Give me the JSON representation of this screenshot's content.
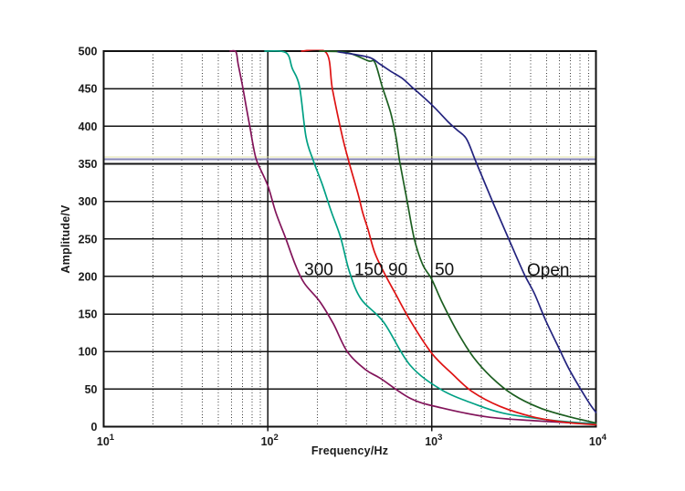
{
  "chart_data": {
    "type": "line",
    "title": "",
    "xlabel": "Frequency/Hz",
    "ylabel": "Amplitude/V",
    "x_scale": "log",
    "xlim": [
      10,
      10000
    ],
    "ylim": [
      0,
      500
    ],
    "y_ticks": [
      0,
      50,
      100,
      150,
      200,
      250,
      300,
      350,
      400,
      450,
      500
    ],
    "x_ticks": [
      {
        "base": "10",
        "exp": "1"
      },
      {
        "base": "10",
        "exp": "2"
      },
      {
        "base": "10",
        "exp": "3"
      },
      {
        "base": "10",
        "exp": "4"
      }
    ],
    "grid": {
      "horizontal": "solid",
      "vertical_major": "solid",
      "vertical_minor": "dotted",
      "color": "#141414",
      "minor_color": "#3c3c3c"
    },
    "reference_lines": [
      {
        "amplitude": 359,
        "color": "#E4E4A8",
        "width": 1.4
      },
      {
        "amplitude": 356,
        "color": "#8585B5",
        "width": 2.2
      }
    ],
    "series": [
      {
        "name": "300",
        "color": "#82145A",
        "points": [
          [
            59,
            500
          ],
          [
            64,
            499
          ],
          [
            66,
            483
          ],
          [
            70,
            455
          ],
          [
            74,
            425
          ],
          [
            78,
            398
          ],
          [
            82,
            371
          ],
          [
            86,
            353
          ],
          [
            100,
            321
          ],
          [
            112,
            285
          ],
          [
            128,
            252
          ],
          [
            147,
            216
          ],
          [
            167,
            191
          ],
          [
            207,
            167
          ],
          [
            251,
            137
          ],
          [
            305,
            100
          ],
          [
            394,
            76
          ],
          [
            488,
            64
          ],
          [
            749,
            37
          ],
          [
            1146,
            25
          ],
          [
            2175,
            13
          ],
          [
            4133,
            8
          ],
          [
            6670,
            5.5
          ],
          [
            10000,
            4.5
          ]
        ]
      },
      {
        "name": "150",
        "color": "#00A084",
        "points": [
          [
            96,
            500
          ],
          [
            129,
            498
          ],
          [
            141,
            477
          ],
          [
            156,
            453
          ],
          [
            171,
            386
          ],
          [
            189,
            355
          ],
          [
            216,
            321
          ],
          [
            245,
            285
          ],
          [
            278,
            252
          ],
          [
            314,
            207
          ],
          [
            370,
            170
          ],
          [
            509,
            139
          ],
          [
            736,
            82
          ],
          [
            1146,
            49
          ],
          [
            1777,
            31
          ],
          [
            2718,
            18
          ],
          [
            5148,
            9
          ],
          [
            10000,
            3.5
          ]
        ]
      },
      {
        "name": "90",
        "color": "#DE1212",
        "points": [
          [
            161,
            500
          ],
          [
            227,
            498
          ],
          [
            248,
            449
          ],
          [
            285,
            386
          ],
          [
            312,
            353
          ],
          [
            356,
            309
          ],
          [
            379,
            285
          ],
          [
            409,
            262
          ],
          [
            448,
            232
          ],
          [
            506,
            207
          ],
          [
            593,
            179
          ],
          [
            749,
            139
          ],
          [
            1005,
            97
          ],
          [
            1335,
            70
          ],
          [
            1777,
            46
          ],
          [
            2603,
            27
          ],
          [
            4133,
            13
          ],
          [
            6413,
            6
          ],
          [
            10000,
            2.5
          ]
        ]
      },
      {
        "name": "50",
        "color": "#1C5E20",
        "points": [
          [
            207,
            500
          ],
          [
            304,
            498
          ],
          [
            410,
            487
          ],
          [
            449,
            485
          ],
          [
            498,
            453
          ],
          [
            559,
            419
          ],
          [
            604,
            386
          ],
          [
            637,
            353
          ],
          [
            706,
            301
          ],
          [
            782,
            250
          ],
          [
            878,
            216
          ],
          [
            1000,
            196
          ],
          [
            1146,
            167
          ],
          [
            1424,
            127
          ],
          [
            1798,
            92
          ],
          [
            2303,
            66
          ],
          [
            3106,
            43
          ],
          [
            4547,
            25
          ],
          [
            6933,
            13
          ],
          [
            10000,
            5
          ]
        ]
      },
      {
        "name": "Open",
        "color": "#23237E",
        "points": [
          [
            268,
            499
          ],
          [
            410,
            492
          ],
          [
            480,
            483
          ],
          [
            562,
            473
          ],
          [
            657,
            464
          ],
          [
            749,
            453
          ],
          [
            1005,
            428
          ],
          [
            1254,
            406
          ],
          [
            1424,
            395
          ],
          [
            1627,
            383
          ],
          [
            1855,
            353
          ],
          [
            2372,
            297
          ],
          [
            2953,
            249
          ],
          [
            3639,
            204
          ],
          [
            4219,
            177
          ],
          [
            4972,
            140
          ],
          [
            5817,
            109
          ],
          [
            6806,
            78
          ],
          [
            7963,
            52
          ],
          [
            9191,
            30
          ],
          [
            10000,
            19
          ]
        ]
      }
    ],
    "curve_labels": [
      {
        "text": "300",
        "f": 167,
        "amplitude": 202
      },
      {
        "text": "150",
        "f": 337,
        "amplitude": 202
      },
      {
        "text": "90",
        "f": 542,
        "amplitude": 202
      },
      {
        "text": "50",
        "f": 1043,
        "amplitude": 202
      },
      {
        "text": "Open",
        "f": 3800,
        "amplitude": 201
      }
    ]
  }
}
